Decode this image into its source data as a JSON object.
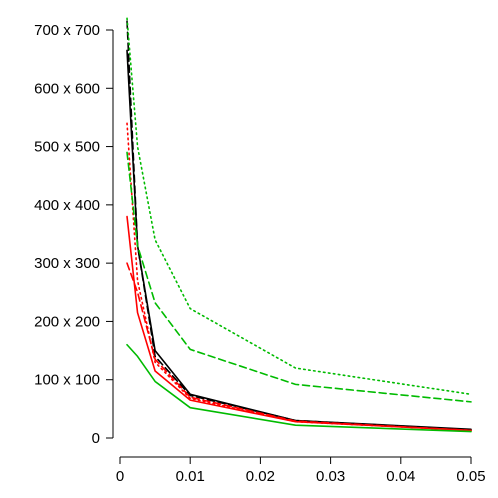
{
  "chart_data": {
    "type": "line",
    "title": "",
    "xlabel": "",
    "ylabel": "",
    "xlim": [
      0,
      0.05
    ],
    "ylim": [
      0,
      700
    ],
    "grid": false,
    "legend": "none",
    "x_ticks": [
      {
        "value": 0,
        "label": "0"
      },
      {
        "value": 0.01,
        "label": "0.01"
      },
      {
        "value": 0.02,
        "label": "0.02"
      },
      {
        "value": 0.03,
        "label": "0.03"
      },
      {
        "value": 0.04,
        "label": "0.04"
      },
      {
        "value": 0.05,
        "label": "0.05"
      }
    ],
    "y_ticks": [
      {
        "value": 0,
        "label": "0"
      },
      {
        "value": 100,
        "label": "100 x 100"
      },
      {
        "value": 200,
        "label": "200 x 200"
      },
      {
        "value": 300,
        "label": "300 x 300"
      },
      {
        "value": 400,
        "label": "400 x 400"
      },
      {
        "value": 500,
        "label": "500 x 500"
      },
      {
        "value": 600,
        "label": "600 x 600"
      },
      {
        "value": 700,
        "label": "700 x 700"
      }
    ],
    "series": [
      {
        "id": "black-solid",
        "color": "#000000",
        "dash": "solid",
        "x": [
          0.001,
          0.0025,
          0.005,
          0.01,
          0.025,
          0.05
        ],
        "y": [
          665,
          330,
          150,
          75,
          30,
          15
        ]
      },
      {
        "id": "black-dashed",
        "color": "#000000",
        "dash": "dashed",
        "x": [
          0.001,
          0.0025,
          0.005,
          0.01,
          0.025,
          0.05
        ],
        "y": [
          715,
          330,
          140,
          73,
          30,
          14
        ]
      },
      {
        "id": "red-solid",
        "color": "#ff0000",
        "dash": "solid",
        "x": [
          0.001,
          0.0025,
          0.005,
          0.01,
          0.025,
          0.05
        ],
        "y": [
          380,
          215,
          115,
          65,
          28,
          13
        ]
      },
      {
        "id": "red-dashed",
        "color": "#ff0000",
        "dash": "dashed",
        "x": [
          0.001,
          0.0025,
          0.005,
          0.01,
          0.025,
          0.05
        ],
        "y": [
          300,
          250,
          135,
          70,
          29,
          13
        ]
      },
      {
        "id": "red-dotted",
        "color": "#ff0000",
        "dash": "dotted",
        "x": [
          0.001,
          0.0025,
          0.005,
          0.01,
          0.025,
          0.05
        ],
        "y": [
          540,
          270,
          130,
          68,
          28,
          13
        ]
      },
      {
        "id": "green-solid",
        "color": "#00bb00",
        "dash": "solid",
        "x": [
          0.001,
          0.0025,
          0.005,
          0.01,
          0.025,
          0.05
        ],
        "y": [
          160,
          140,
          97,
          52,
          22,
          11
        ]
      },
      {
        "id": "green-dashed",
        "color": "#00bb00",
        "dash": "dashed",
        "x": [
          0.001,
          0.0025,
          0.005,
          0.01,
          0.025,
          0.05
        ],
        "y": [
          490,
          330,
          232,
          152,
          92,
          62
        ]
      },
      {
        "id": "green-dotted",
        "color": "#00bb00",
        "dash": "dotted",
        "x": [
          0.001,
          0.0025,
          0.005,
          0.01,
          0.025,
          0.05
        ],
        "y": [
          720,
          500,
          340,
          222,
          120,
          75
        ]
      }
    ]
  }
}
